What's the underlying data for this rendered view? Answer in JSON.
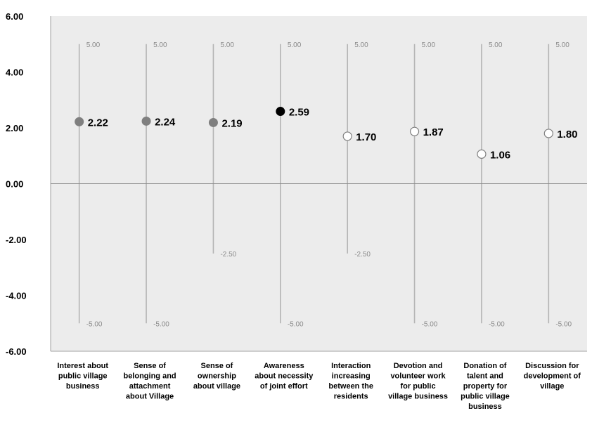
{
  "chart_data": {
    "type": "scatter",
    "title": "",
    "xlabel": "",
    "ylabel": "",
    "ylim": [
      -6,
      6
    ],
    "y_ticks": [
      "6.00",
      "4.00",
      "2.00",
      "0.00",
      "-2.00",
      "-4.00",
      "-6.00"
    ],
    "grid": false,
    "categories": [
      [
        "Interest about",
        "public village",
        "business"
      ],
      [
        "Sense of",
        "belonging and",
        "attachment",
        "about Village"
      ],
      [
        "Sense of",
        "ownership",
        "about village"
      ],
      [
        "Awareness",
        "about necessity",
        "of joint effort"
      ],
      [
        "Interaction",
        "increasing",
        "between the",
        "residents"
      ],
      [
        "Devotion and",
        "volunteer work",
        "for public",
        "village business"
      ],
      [
        "Donation of",
        "talent and",
        "property for",
        "public village",
        "business"
      ],
      [
        "Discussion for",
        "development of",
        "village"
      ]
    ],
    "values": [
      2.22,
      2.24,
      2.19,
      2.59,
      1.7,
      1.87,
      1.06,
      1.8
    ],
    "value_labels": [
      "2.22",
      "2.24",
      "2.19",
      "2.59",
      "1.70",
      "1.87",
      "1.06",
      "1.80"
    ],
    "range_max": [
      5,
      5,
      5,
      5,
      5,
      5,
      5,
      5
    ],
    "range_max_labels": [
      "5.00",
      "5.00",
      "5.00",
      "5.00",
      "5.00",
      "5.00",
      "5.00",
      "5.00"
    ],
    "range_min": [
      -5,
      -5,
      -2.5,
      -5,
      -2.5,
      -5,
      -5,
      -5
    ],
    "range_min_labels": [
      "-5.00",
      "-5.00",
      "-2.50",
      "-5.00",
      "-2.50",
      "-5.00",
      "-5.00",
      "-5.00"
    ],
    "marker_styles": [
      "gray",
      "gray",
      "gray",
      "black",
      "hollow",
      "hollow",
      "hollow",
      "hollow"
    ],
    "colors": {
      "plot_background": "#ececec",
      "range_line": "#b4b4b4",
      "zero_line": "#8c8c8c",
      "axis_line": "#a0a0a0",
      "marker_gray": "#7f7f7f",
      "marker_black": "#000000",
      "marker_hollow_fill": "#ffffff",
      "marker_hollow_stroke": "#7f7f7f"
    }
  }
}
